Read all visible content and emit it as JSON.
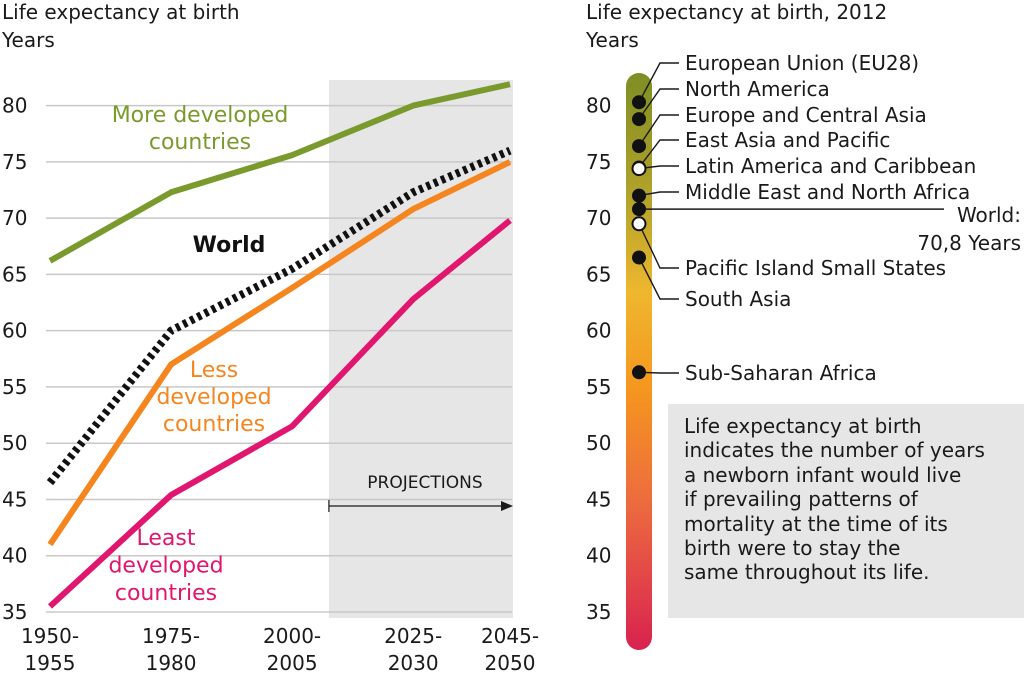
{
  "chart_data": [
    {
      "type": "line",
      "title": "Life expectancy at birth",
      "ylabel": "Years",
      "categories": [
        "1950-1955",
        "1975-1980",
        "2000-2005",
        "2025-2030",
        "2045-2050"
      ],
      "category_lines": [
        [
          "1950-",
          "1955"
        ],
        [
          "1975-",
          "1980"
        ],
        [
          "2000-",
          "2005"
        ],
        [
          "2025-",
          "2030"
        ],
        [
          "2045-",
          "2050"
        ]
      ],
      "ylim": [
        35,
        80
      ],
      "yticks": [
        35,
        40,
        45,
        50,
        55,
        60,
        65,
        70,
        75,
        80
      ],
      "grid": true,
      "projection_label": "PROJECTIONS",
      "series": [
        {
          "name": "More developed countries",
          "label_lines": [
            "More developed",
            "countries"
          ],
          "color": "#7b9a2e",
          "style": "solid",
          "points": [
            [
              "1950-1955",
              66.2
            ],
            [
              "1975-1980",
              72.3
            ],
            [
              "2000-2005",
              75.6
            ],
            [
              "2025-2030",
              80.0
            ],
            [
              "2045-2050",
              81.9
            ]
          ]
        },
        {
          "name": "World",
          "label_lines": [
            "World"
          ],
          "color": "#111111",
          "style": "dotted",
          "points": [
            [
              "1950-1955",
              46.5
            ],
            [
              "1975-1980",
              60.0
            ],
            [
              "2000-2005",
              65.5
            ],
            [
              "2025-2030",
              72.3
            ],
            [
              "2045-2050",
              76.0
            ]
          ]
        },
        {
          "name": "Less developed countries",
          "label_lines": [
            "Less",
            "developed",
            "countries"
          ],
          "color": "#f5861f",
          "style": "solid",
          "points": [
            [
              "1950-1955",
              41.0
            ],
            [
              "1975-1980",
              57.0
            ],
            [
              "2000-2005",
              63.8
            ],
            [
              "2025-2030",
              70.8
            ],
            [
              "2045-2050",
              75.0
            ]
          ]
        },
        {
          "name": "Least developed countries",
          "label_lines": [
            "Least",
            "developed",
            "countries"
          ],
          "color": "#e0166f",
          "style": "solid",
          "points": [
            [
              "1950-1955",
              35.5
            ],
            [
              "1975-1980",
              45.4
            ],
            [
              "2000-2005",
              51.5
            ],
            [
              "2025-2030",
              62.8
            ],
            [
              "2045-2050",
              69.8
            ]
          ]
        }
      ]
    },
    {
      "type": "scatter",
      "title": "Life expectancy at birth, 2012",
      "ylabel": "Years",
      "ylim": [
        35,
        80
      ],
      "yticks": [
        35,
        40,
        45,
        50,
        55,
        60,
        65,
        70,
        75,
        80
      ],
      "points": [
        {
          "name": "European Union (EU28)",
          "value": 80.3
        },
        {
          "name": "North America",
          "value": 78.8
        },
        {
          "name": "Europe and Central Asia",
          "value": 76.4
        },
        {
          "name": "East Asia and Pacific",
          "value": 74.5
        },
        {
          "name": "Latin America and Caribbean",
          "value": 74.4
        },
        {
          "name": "Middle East and North Africa",
          "value": 72.0
        },
        {
          "name": "World",
          "value": 70.8,
          "label_lines": [
            "World:",
            "70,8 Years"
          ]
        },
        {
          "name": "Pacific Island Small States",
          "value": 69.5
        },
        {
          "name": "South Asia",
          "value": 66.5
        },
        {
          "name": "Sub-Saharan Africa",
          "value": 56.3
        }
      ]
    }
  ],
  "note_lines": [
    "Life expectancy at birth",
    "indicates the number of years",
    "a newborn infant would live",
    "if prevailing patterns of",
    "mortality at the time of its",
    "birth were to stay the",
    "same throughout its life."
  ]
}
